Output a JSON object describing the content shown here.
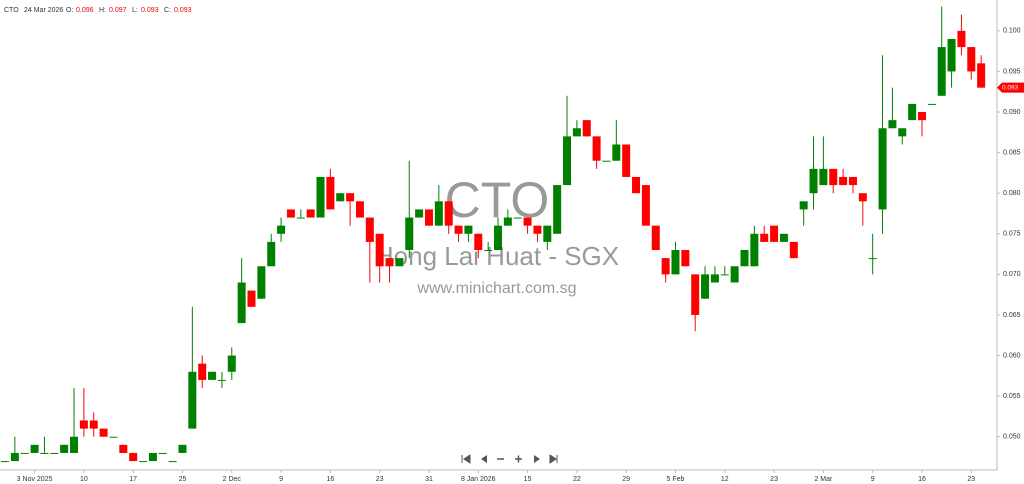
{
  "header": {
    "symbol": "CTO",
    "date": "24 Mar 2026",
    "o_label": "O:",
    "h_label": "H:",
    "l_label": "L:",
    "c_label": "C:",
    "o": 0.096,
    "h": 0.097,
    "l": 0.093,
    "c": 0.093
  },
  "watermark": {
    "code": "CTO",
    "name": "Hong Lai Huat - SGX",
    "site": "www.minichart.com.sg"
  },
  "chart_data": {
    "type": "candlestick",
    "up_color": "#008000",
    "down_color": "#ff0000",
    "grid": false,
    "ylim": [
      0.0459,
      0.1038
    ],
    "yticks": [
      {
        "value": 0.05,
        "label": "0.050"
      },
      {
        "value": 0.055,
        "label": "0.055"
      },
      {
        "value": 0.06,
        "label": "0.060"
      },
      {
        "value": 0.065,
        "label": "0.065"
      },
      {
        "value": 0.07,
        "label": "0.070"
      },
      {
        "value": 0.075,
        "label": "0.075"
      },
      {
        "value": 0.08,
        "label": "0.080"
      },
      {
        "value": 0.085,
        "label": "0.085"
      },
      {
        "value": 0.09,
        "label": "0.090"
      },
      {
        "value": 0.095,
        "label": "0.095"
      },
      {
        "value": 0.1,
        "label": "0.100"
      }
    ],
    "categories": [
      null,
      null,
      null,
      "3 Nov 2025",
      null,
      null,
      null,
      null,
      "10",
      null,
      null,
      null,
      null,
      "17",
      null,
      null,
      null,
      null,
      "25",
      null,
      null,
      null,
      null,
      "2 Dec",
      null,
      null,
      null,
      null,
      "9",
      null,
      null,
      null,
      null,
      "16",
      null,
      null,
      null,
      null,
      "23",
      null,
      null,
      null,
      null,
      "31",
      null,
      null,
      null,
      null,
      "8 Jan 2026",
      null,
      null,
      null,
      null,
      "15",
      null,
      null,
      null,
      null,
      "22",
      null,
      null,
      null,
      null,
      "29",
      null,
      null,
      null,
      null,
      "5 Feb",
      null,
      null,
      null,
      null,
      "12",
      null,
      null,
      null,
      null,
      "23",
      null,
      null,
      null,
      null,
      "2 Mar",
      null,
      null,
      null,
      null,
      "9",
      null,
      null,
      null,
      null,
      "16",
      null,
      null,
      null,
      null,
      "23",
      null
    ],
    "open": [
      0.047,
      0.047,
      0.048,
      0.048,
      0.048,
      0.048,
      0.048,
      0.048,
      0.052,
      0.052,
      0.051,
      0.05,
      0.049,
      0.048,
      0.047,
      0.047,
      0.048,
      0.047,
      0.048,
      0.051,
      0.059,
      0.057,
      0.057,
      0.058,
      0.064,
      0.068,
      0.067,
      0.071,
      0.075,
      0.078,
      0.077,
      0.078,
      0.077,
      0.082,
      0.079,
      0.08,
      0.079,
      0.077,
      0.075,
      0.072,
      0.071,
      0.073,
      0.077,
      0.078,
      0.076,
      0.079,
      0.076,
      0.075,
      0.075,
      0.073,
      0.073,
      0.076,
      0.077,
      0.077,
      0.076,
      0.074,
      0.075,
      0.081,
      0.087,
      0.089,
      0.087,
      0.084,
      0.084,
      0.086,
      0.082,
      0.081,
      0.076,
      0.072,
      0.07,
      0.073,
      0.07,
      0.067,
      0.069,
      0.07,
      0.069,
      0.071,
      0.071,
      0.075,
      0.076,
      0.074,
      0.074,
      0.078,
      0.08,
      0.081,
      0.083,
      0.082,
      0.082,
      0.08,
      0.072,
      0.078,
      0.088,
      0.087,
      0.089,
      0.09,
      0.091,
      0.092,
      0.095,
      0.1,
      0.098,
      0.096
    ],
    "high": [
      0.047,
      0.05,
      0.048,
      0.049,
      0.05,
      0.048,
      0.049,
      0.056,
      0.056,
      0.053,
      0.051,
      0.05,
      0.049,
      0.048,
      0.047,
      0.048,
      0.048,
      0.047,
      0.049,
      0.066,
      0.06,
      0.058,
      0.058,
      0.061,
      0.072,
      0.068,
      0.071,
      0.075,
      0.077,
      0.078,
      0.078,
      0.078,
      0.082,
      0.083,
      0.08,
      0.08,
      0.079,
      0.077,
      0.075,
      0.072,
      0.072,
      0.084,
      0.078,
      0.078,
      0.081,
      0.079,
      0.076,
      0.076,
      0.075,
      0.074,
      0.077,
      0.078,
      0.077,
      0.077,
      0.076,
      0.076,
      0.081,
      0.092,
      0.089,
      0.089,
      0.087,
      0.084,
      0.089,
      0.086,
      0.082,
      0.081,
      0.076,
      0.072,
      0.074,
      0.073,
      0.07,
      0.071,
      0.071,
      0.071,
      0.071,
      0.073,
      0.076,
      0.076,
      0.076,
      0.075,
      0.074,
      0.079,
      0.087,
      0.087,
      0.083,
      0.083,
      0.082,
      0.08,
      0.075,
      0.097,
      0.093,
      0.088,
      0.091,
      0.09,
      0.091,
      0.103,
      0.099,
      0.102,
      0.098,
      0.097
    ],
    "low": [
      0.047,
      0.047,
      0.048,
      0.048,
      0.048,
      0.048,
      0.048,
      0.048,
      0.05,
      0.05,
      0.05,
      0.05,
      0.048,
      0.047,
      0.047,
      0.047,
      0.048,
      0.047,
      0.048,
      0.051,
      0.056,
      0.057,
      0.056,
      0.057,
      0.064,
      0.066,
      0.067,
      0.071,
      0.074,
      0.077,
      0.077,
      0.077,
      0.077,
      0.078,
      0.079,
      0.076,
      0.077,
      0.069,
      0.069,
      0.069,
      0.071,
      0.072,
      0.077,
      0.076,
      0.076,
      0.075,
      0.074,
      0.074,
      0.072,
      0.073,
      0.073,
      0.076,
      0.077,
      0.075,
      0.074,
      0.073,
      0.075,
      0.081,
      0.087,
      0.087,
      0.083,
      0.084,
      0.084,
      0.082,
      0.08,
      0.076,
      0.073,
      0.069,
      0.07,
      0.071,
      0.063,
      0.067,
      0.069,
      0.07,
      0.069,
      0.071,
      0.071,
      0.074,
      0.074,
      0.074,
      0.072,
      0.076,
      0.078,
      0.081,
      0.08,
      0.081,
      0.08,
      0.076,
      0.07,
      0.075,
      0.088,
      0.086,
      0.089,
      0.087,
      0.091,
      0.092,
      0.093,
      0.097,
      0.094,
      0.093
    ],
    "close": [
      0.047,
      0.048,
      0.048,
      0.049,
      0.048,
      0.048,
      0.049,
      0.05,
      0.051,
      0.051,
      0.05,
      0.05,
      0.048,
      0.047,
      0.047,
      0.048,
      0.048,
      0.047,
      0.049,
      0.058,
      0.057,
      0.058,
      0.057,
      0.06,
      0.069,
      0.066,
      0.071,
      0.074,
      0.076,
      0.077,
      0.077,
      0.077,
      0.082,
      0.078,
      0.08,
      0.079,
      0.077,
      0.074,
      0.071,
      0.071,
      0.072,
      0.077,
      0.078,
      0.076,
      0.079,
      0.076,
      0.075,
      0.076,
      0.073,
      0.073,
      0.076,
      0.077,
      0.077,
      0.076,
      0.075,
      0.076,
      0.081,
      0.087,
      0.088,
      0.087,
      0.084,
      0.084,
      0.086,
      0.082,
      0.08,
      0.076,
      0.073,
      0.07,
      0.073,
      0.071,
      0.065,
      0.07,
      0.07,
      0.07,
      0.071,
      0.073,
      0.075,
      0.074,
      0.074,
      0.075,
      0.072,
      0.079,
      0.083,
      0.083,
      0.081,
      0.081,
      0.081,
      0.079,
      0.072,
      0.088,
      0.089,
      0.088,
      0.091,
      0.089,
      0.091,
      0.098,
      0.099,
      0.098,
      0.095,
      0.093
    ]
  }
}
